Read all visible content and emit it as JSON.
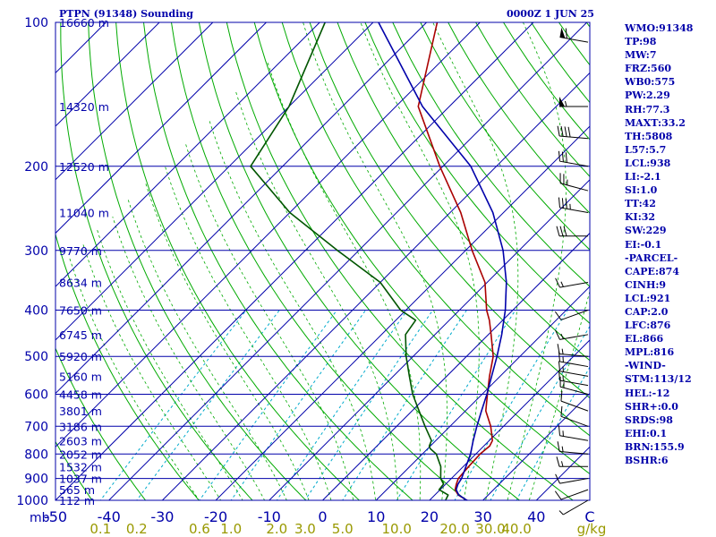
{
  "header": {
    "title": "PTPN (91348) Sounding",
    "datetime": "0000Z  1 JUN 25"
  },
  "indices": [
    "WMO:91348",
    "TP:98",
    "MW:7",
    "FRZ:560",
    "WB0:575",
    "PW:2.29",
    "RH:77.3",
    "MAXT:33.2",
    "TH:5808",
    "L57:5.7",
    "LCL:938",
    "LI:-2.1",
    "SI:1.0",
    "TT:42",
    "KI:32",
    "SW:229",
    "EI:-0.1",
    "-PARCEL-",
    "CAPE:874",
    "CINH:9",
    "LCL:921",
    "CAP:2.0",
    "LFC:876",
    "EL:866",
    "MPL:816",
    "-WIND-",
    "STM:113/12",
    "HEL:-12",
    "SHR+:0.0",
    "SRDS:98",
    "EHI:0.1",
    "BRN:155.9",
    "BSHR:6"
  ],
  "chart_data": {
    "type": "line",
    "title": "PTPN (91348) Sounding",
    "subtitle": "0000Z  1 JUN 25",
    "x_axis_unit_label": "mb",
    "x_range": [
      -50,
      50
    ],
    "y_range": [
      100,
      1000
    ],
    "y_scale": "log-pressure",
    "temperature_ticks": [
      "-50",
      "-40",
      "-30",
      "-20",
      "-10",
      "0",
      "10",
      "20",
      "30",
      "40",
      "C"
    ],
    "temperature_tick_values": [
      -50,
      -40,
      -30,
      -20,
      -10,
      0,
      10,
      20,
      30,
      40
    ],
    "mixing_ratio_labels": [
      "0.1",
      "0.2",
      "0.6",
      "1.0",
      "2.0",
      "3.0",
      "5.0",
      "10.0",
      "20.0",
      "30.0",
      "40.0",
      "g/kg"
    ],
    "mixing_ratio_values": [
      0.1,
      0.2,
      0.6,
      1.0,
      2.0,
      3.0,
      5.0,
      10.0,
      20.0,
      30.0,
      40.0
    ],
    "pressure_ticks": [
      {
        "label": "100",
        "p": 100
      },
      {
        "label": "200",
        "p": 200
      },
      {
        "label": "300",
        "p": 300
      },
      {
        "label": "400",
        "p": 400
      },
      {
        "label": "500",
        "p": 500
      },
      {
        "label": "600",
        "p": 600
      },
      {
        "label": "700",
        "p": 700
      },
      {
        "label": "800",
        "p": 800
      },
      {
        "label": "900",
        "p": 900
      },
      {
        "label": "1000",
        "p": 1000
      }
    ],
    "height_labels": [
      {
        "label": "16660 m",
        "p": 100
      },
      {
        "label": "14320 m",
        "p": 150
      },
      {
        "label": "12520 m",
        "p": 200
      },
      {
        "label": "11040 m",
        "p": 250
      },
      {
        "label": "9770 m",
        "p": 300
      },
      {
        "label": "8634 m",
        "p": 350
      },
      {
        "label": "7650 m",
        "p": 400
      },
      {
        "label": "6745 m",
        "p": 450
      },
      {
        "label": "5920 m",
        "p": 500
      },
      {
        "label": "5160 m",
        "p": 550
      },
      {
        "label": "4458 m",
        "p": 600
      },
      {
        "label": "3801 m",
        "p": 650
      },
      {
        "label": "3186 m",
        "p": 700
      },
      {
        "label": "2603 m",
        "p": 750
      },
      {
        "label": "2052 m",
        "p": 800
      },
      {
        "label": "1532 m",
        "p": 850
      },
      {
        "label": "1037 m",
        "p": 900
      },
      {
        "label": "565 m",
        "p": 950
      },
      {
        "label": "112 m",
        "p": 1000
      }
    ],
    "series": [
      {
        "color": "#aa0000",
        "points": [
          [
            1008,
            28.5
          ],
          [
            1000,
            27.0
          ],
          [
            975,
            24.4
          ],
          [
            950,
            22.8
          ],
          [
            925,
            22.0
          ],
          [
            900,
            21.3
          ],
          [
            850,
            21.0
          ],
          [
            800,
            20.8
          ],
          [
            770,
            21.1
          ],
          [
            750,
            20.6
          ],
          [
            700,
            17.6
          ],
          [
            650,
            13.8
          ],
          [
            600,
            11.0
          ],
          [
            550,
            8.0
          ],
          [
            500,
            5.0
          ],
          [
            450,
            0.5
          ],
          [
            420,
            -2.5
          ],
          [
            400,
            -4.9
          ],
          [
            350,
            -10.4
          ],
          [
            300,
            -18.8
          ],
          [
            250,
            -28.0
          ],
          [
            200,
            -40.6
          ],
          [
            150,
            -55.8
          ],
          [
            100,
            -68.0
          ]
        ]
      },
      {
        "color": "#005500",
        "points": [
          [
            1008,
            24.5
          ],
          [
            1000,
            23.0
          ],
          [
            975,
            22.5
          ],
          [
            950,
            19.8
          ],
          [
            925,
            19.6
          ],
          [
            900,
            18.0
          ],
          [
            850,
            15.8
          ],
          [
            800,
            12.6
          ],
          [
            780,
            10.5
          ],
          [
            770,
            9.8
          ],
          [
            750,
            9.2
          ],
          [
            700,
            5.3
          ],
          [
            650,
            1.3
          ],
          [
            600,
            -3.0
          ],
          [
            550,
            -7.0
          ],
          [
            500,
            -11.3
          ],
          [
            450,
            -15.5
          ],
          [
            420,
            -16.3
          ],
          [
            400,
            -21.0
          ],
          [
            350,
            -30.0
          ],
          [
            300,
            -44.0
          ],
          [
            250,
            -60.0
          ],
          [
            200,
            -76.0
          ],
          [
            150,
            -80.0
          ],
          [
            100,
            -89.0
          ]
        ]
      },
      {
        "color": "#0000aa",
        "points": [
          [
            1008,
            28.5
          ],
          [
            1000,
            27.0
          ],
          [
            975,
            24.5
          ],
          [
            950,
            23.0
          ],
          [
            925,
            22.3
          ],
          [
            900,
            21.9
          ],
          [
            850,
            20.5
          ],
          [
            800,
            19.0
          ],
          [
            750,
            17.0
          ],
          [
            700,
            15.0
          ],
          [
            650,
            13.0
          ],
          [
            600,
            10.9
          ],
          [
            550,
            8.4
          ],
          [
            500,
            5.7
          ],
          [
            450,
            2.5
          ],
          [
            400,
            -1.4
          ],
          [
            350,
            -6.4
          ],
          [
            300,
            -13.0
          ],
          [
            250,
            -22.0
          ],
          [
            200,
            -34.8
          ],
          [
            150,
            -55.0
          ],
          [
            100,
            -79.0
          ]
        ]
      }
    ],
    "wind_barbs": [
      {
        "p": 110,
        "dir": 280,
        "kt": 60
      },
      {
        "p": 150,
        "dir": 270,
        "kt": 55
      },
      {
        "p": 175,
        "dir": 275,
        "kt": 40
      },
      {
        "p": 200,
        "dir": 280,
        "kt": 30
      },
      {
        "p": 225,
        "dir": 285,
        "kt": 25
      },
      {
        "p": 250,
        "dir": 280,
        "kt": 35
      },
      {
        "p": 280,
        "dir": 270,
        "kt": 30
      },
      {
        "p": 350,
        "dir": 260,
        "kt": 15
      },
      {
        "p": 400,
        "dir": 250,
        "kt": 10
      },
      {
        "p": 450,
        "dir": 260,
        "kt": 15
      },
      {
        "p": 500,
        "dir": 275,
        "kt": 15
      },
      {
        "p": 525,
        "dir": 280,
        "kt": 15
      },
      {
        "p": 550,
        "dir": 280,
        "kt": 15
      },
      {
        "p": 575,
        "dir": 280,
        "kt": 15
      },
      {
        "p": 600,
        "dir": 285,
        "kt": 15
      },
      {
        "p": 650,
        "dir": 290,
        "kt": 10
      },
      {
        "p": 700,
        "dir": 290,
        "kt": 10
      },
      {
        "p": 750,
        "dir": 280,
        "kt": 15
      },
      {
        "p": 800,
        "dir": 275,
        "kt": 15
      },
      {
        "p": 850,
        "dir": 270,
        "kt": 15
      },
      {
        "p": 900,
        "dir": 260,
        "kt": 10
      },
      {
        "p": 950,
        "dir": 250,
        "kt": 10
      },
      {
        "p": 1000,
        "dir": 240,
        "kt": 5
      }
    ],
    "colors": {
      "frame": "#0000aa",
      "isobar": "#0000aa",
      "isotherm": "#0000aa",
      "dry_adiabat": "#00aa00",
      "moist_adiabat": "#00aa00",
      "mixing_ratio": "#00aacc",
      "axis_text": "#0000aa",
      "mixing_text": "#999900",
      "barb": "#000000",
      "barb_secondary": "#999999"
    }
  }
}
